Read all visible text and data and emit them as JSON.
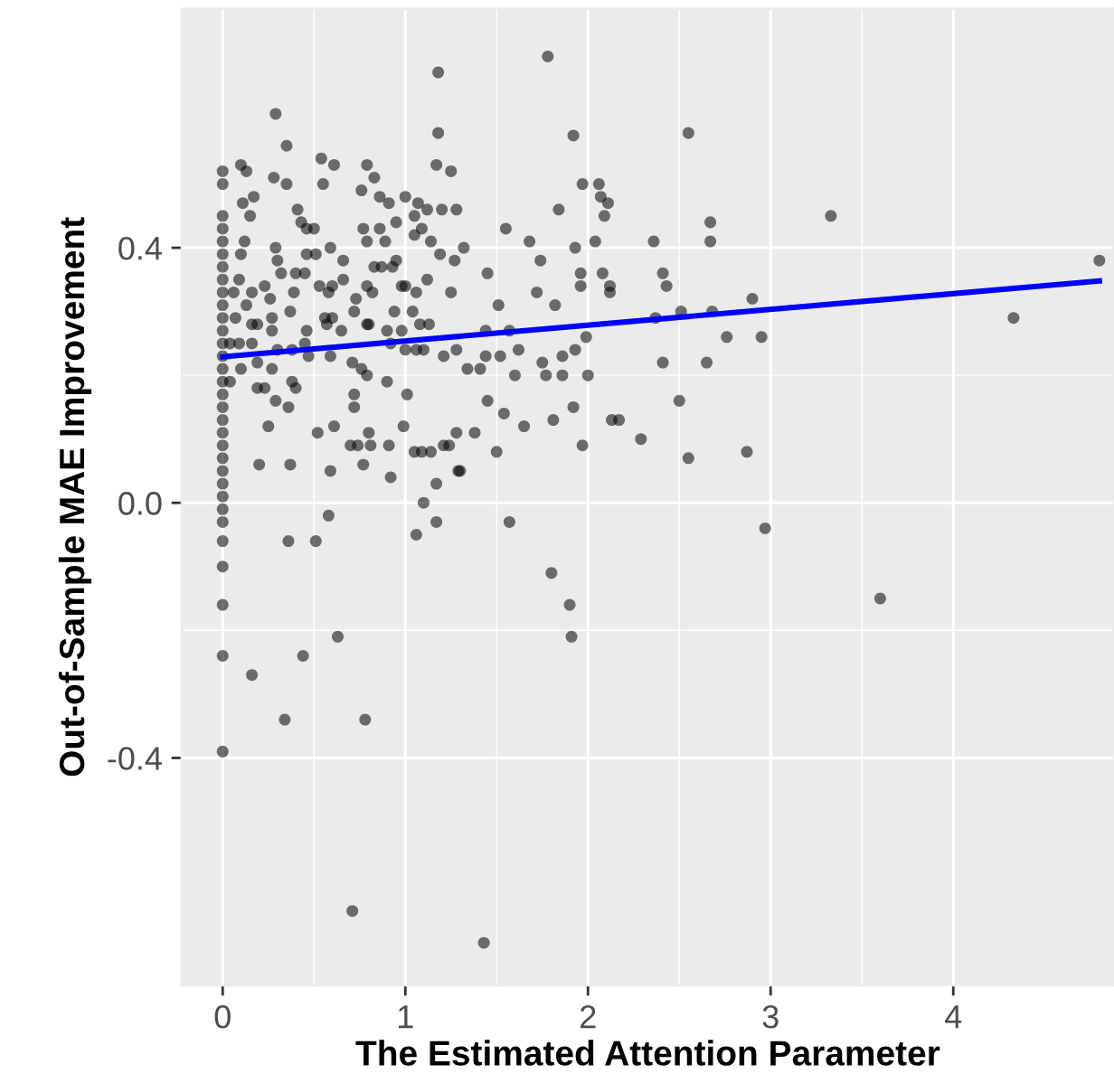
{
  "chart_data": {
    "type": "scatter",
    "xlabel": "The Estimated Attention Parameter",
    "ylabel": "Out-of-Sample MAE Improvement",
    "xlim": [
      -0.225,
      4.88
    ],
    "ylim": [
      -0.757,
      0.775
    ],
    "xticks": [
      0,
      1,
      2,
      3,
      4
    ],
    "yticks": [
      -0.4,
      {
        "value": 0,
        "label": "0.0"
      },
      0.4
    ],
    "grid": true,
    "series": [
      {
        "marker": "circle",
        "color": "#000000",
        "x": [
          0,
          0,
          0,
          0,
          0,
          0,
          0,
          0,
          0,
          0,
          0,
          0,
          0,
          0,
          0,
          0,
          0,
          0,
          0,
          0,
          0,
          0,
          0,
          0,
          0,
          0,
          0,
          0,
          0,
          0,
          0,
          0,
          1.18,
          1.78,
          1.92,
          2.55,
          1.97,
          2.06,
          2.07,
          2.11,
          2.09,
          1.84,
          1.55,
          1.68,
          1.93,
          2.04,
          2.36,
          2.67,
          2.67,
          1.74,
          1.32,
          1.45,
          1.96,
          1.96,
          2.08,
          2.12,
          2.12,
          2.41,
          2.43,
          1.72,
          1.51,
          1.82,
          2.9,
          2.37,
          2.51,
          2.68,
          1.44,
          1.57,
          1.99,
          2.95,
          2.76,
          1.62,
          1.52,
          1.86,
          1.93,
          1.75,
          1.44,
          1.34,
          1.41,
          1.6,
          1.77,
          1.86,
          2.0,
          2.41,
          2.65,
          2.5,
          1.45,
          1.54,
          1.65,
          1.81,
          1.92,
          2.13,
          2.17,
          2.29,
          1.38,
          1.5,
          1.97,
          2.55,
          2.87,
          1.29,
          1.57,
          2.97,
          4.33,
          4.8,
          3.33,
          3.6,
          0.36,
          0.51,
          0.58,
          1.06,
          1.17,
          1.8,
          1.9,
          1.91,
          0.63,
          0.44,
          0.16,
          0.34,
          0.78,
          0.71,
          1.43,
          0.29,
          0.35,
          0.1,
          0.13,
          0.28,
          0.35,
          0.54,
          0.61,
          0.55,
          0.79,
          0.76,
          0.83,
          1.18,
          1.17,
          1.25,
          0.17,
          0.11,
          0.15,
          0.41,
          0.43,
          0.46,
          0.5,
          0.86,
          0.91,
          1.0,
          1.07,
          1.12,
          1.2,
          1.28,
          0.95,
          1.05,
          0.77,
          0.86,
          0.79,
          1.09,
          1.05,
          1.14,
          0.12,
          0.29,
          0.46,
          0.51,
          0.59,
          0.89,
          1.19,
          0.1,
          0.3,
          0.66,
          0.83,
          0.93,
          0.87,
          0.95,
          1.27,
          0.09,
          0.32,
          0.4,
          0.45,
          0.66,
          0.53,
          0.6,
          0.79,
          0.98,
          1.12,
          1.25,
          0.06,
          0.16,
          0.23,
          0.26,
          0.39,
          0.58,
          0.82,
          1.0,
          1.06,
          0.13,
          0.37,
          0.56,
          0.6,
          0.72,
          0.73,
          0.8,
          0.94,
          1.04,
          0.07,
          0.27,
          0.16,
          0.19,
          0.27,
          0.46,
          0.57,
          0.65,
          0.79,
          0.9,
          0.98,
          1.08,
          1.13,
          0.04,
          0.09,
          0.16,
          0.3,
          0.38,
          0.45,
          0.92,
          1.0,
          1.06,
          1.1,
          1.21,
          1.28,
          0.04,
          0.1,
          0.19,
          0.27,
          0.38,
          0.4,
          0.19,
          0.23,
          0.29,
          0.36,
          0.25,
          0.47,
          0.59,
          0.71,
          0.76,
          0.79,
          0.9,
          0.72,
          0.72,
          0.52,
          0.61,
          0.8,
          0.7,
          0.74,
          0.77,
          0.81,
          0.91,
          0.99,
          1.01,
          0.92,
          1.05,
          1.09,
          1.14,
          1.21,
          1.24,
          1.17,
          1.1,
          1.3,
          1.28,
          0.2,
          0.37,
          0.59
        ],
        "values": [
          0.52,
          0.5,
          0.45,
          0.43,
          0.41,
          0.39,
          0.37,
          0.35,
          0.33,
          0.31,
          0.29,
          0.27,
          0.25,
          0.23,
          0.21,
          0.19,
          0.17,
          0.15,
          0.13,
          0.11,
          0.09,
          0.07,
          0.05,
          0.03,
          0.01,
          -0.01,
          -0.03,
          -0.06,
          -0.1,
          -0.16,
          -0.24,
          -0.39,
          0.675,
          0.7,
          0.576,
          0.58,
          0.5,
          0.5,
          0.48,
          0.47,
          0.45,
          0.46,
          0.43,
          0.41,
          0.4,
          0.41,
          0.41,
          0.44,
          0.41,
          0.38,
          0.4,
          0.36,
          0.36,
          0.34,
          0.36,
          0.34,
          0.33,
          0.36,
          0.34,
          0.33,
          0.31,
          0.31,
          0.32,
          0.29,
          0.3,
          0.3,
          0.27,
          0.27,
          0.26,
          0.26,
          0.26,
          0.24,
          0.23,
          0.23,
          0.24,
          0.22,
          0.23,
          0.21,
          0.21,
          0.2,
          0.2,
          0.2,
          0.2,
          0.22,
          0.22,
          0.16,
          0.16,
          0.14,
          0.12,
          0.13,
          0.15,
          0.13,
          0.13,
          0.1,
          0.11,
          0.08,
          0.09,
          0.07,
          0.08,
          0.05,
          -0.03,
          -0.04,
          0.29,
          0.38,
          0.45,
          -0.15,
          -0.06,
          -0.06,
          -0.02,
          -0.05,
          -0.03,
          -0.11,
          -0.16,
          -0.21,
          -0.21,
          -0.24,
          -0.27,
          -0.34,
          -0.34,
          -0.64,
          -0.69,
          0.61,
          0.56,
          0.53,
          0.52,
          0.51,
          0.5,
          0.54,
          0.53,
          0.5,
          0.53,
          0.49,
          0.51,
          0.58,
          0.53,
          0.52,
          0.48,
          0.47,
          0.45,
          0.46,
          0.44,
          0.43,
          0.43,
          0.48,
          0.47,
          0.48,
          0.47,
          0.46,
          0.46,
          0.46,
          0.44,
          0.45,
          0.43,
          0.43,
          0.41,
          0.43,
          0.42,
          0.41,
          0.41,
          0.4,
          0.39,
          0.39,
          0.4,
          0.41,
          0.39,
          0.39,
          0.38,
          0.38,
          0.37,
          0.37,
          0.37,
          0.38,
          0.38,
          0.35,
          0.36,
          0.36,
          0.36,
          0.35,
          0.34,
          0.34,
          0.34,
          0.34,
          0.35,
          0.33,
          0.33,
          0.33,
          0.34,
          0.32,
          0.33,
          0.33,
          0.33,
          0.34,
          0.33,
          0.31,
          0.3,
          0.29,
          0.29,
          0.3,
          0.32,
          0.28,
          0.3,
          0.3,
          0.29,
          0.29,
          0.28,
          0.28,
          0.27,
          0.27,
          0.28,
          0.27,
          0.28,
          0.27,
          0.27,
          0.28,
          0.28,
          0.25,
          0.25,
          0.25,
          0.24,
          0.24,
          0.25,
          0.25,
          0.24,
          0.24,
          0.24,
          0.23,
          0.24,
          0.19,
          0.21,
          0.22,
          0.21,
          0.19,
          0.18,
          0.18,
          0.18,
          0.16,
          0.15,
          0.12,
          0.23,
          0.23,
          0.22,
          0.21,
          0.2,
          0.19,
          0.17,
          0.15,
          0.11,
          0.12,
          0.11,
          0.09,
          0.09,
          0.06,
          0.09,
          0.09,
          0.12,
          0.17,
          0.04,
          0.08,
          0.08,
          0.08,
          0.09,
          0.09,
          0.03,
          0.0,
          0.05,
          0.11,
          0.06,
          0.06,
          0.05
        ]
      },
      {
        "type": "line",
        "color": "#0000ff",
        "x": [
          0,
          4.8
        ],
        "values": [
          0.229,
          0.348
        ]
      }
    ]
  }
}
